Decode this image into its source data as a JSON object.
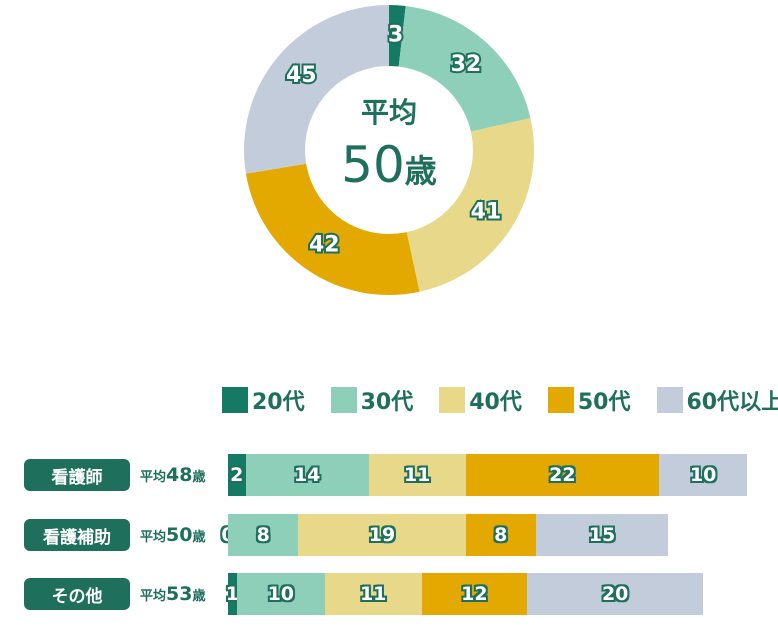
{
  "colors": {
    "20s": "#147a64",
    "30s": "#8ecfba",
    "40s": "#e8d889",
    "50s": "#e3a900",
    "60s": "#c3ccda",
    "text": "#1e6f5c"
  },
  "chart_data": [
    {
      "type": "pie",
      "center_title": "平均",
      "center_value": "50",
      "center_unit": "歳",
      "categories": [
        "20代",
        "30代",
        "40代",
        "50代",
        "60代以上"
      ],
      "values": [
        3,
        32,
        41,
        42,
        45
      ]
    },
    {
      "type": "bar",
      "orientation": "horizontal",
      "stacked": true,
      "legend": [
        "20代",
        "30代",
        "40代",
        "50代",
        "60代以上"
      ],
      "rows": [
        {
          "name": "看護師",
          "avg_prefix": "平均",
          "avg_value": "48",
          "avg_unit": "歳",
          "values": [
            2,
            14,
            11,
            22,
            10
          ]
        },
        {
          "name": "看護補助",
          "avg_prefix": "平均",
          "avg_value": "50",
          "avg_unit": "歳",
          "values": [
            0,
            8,
            19,
            8,
            15
          ]
        },
        {
          "name": "その他",
          "avg_prefix": "平均",
          "avg_value": "53",
          "avg_unit": "歳",
          "values": [
            1,
            10,
            11,
            12,
            20
          ]
        }
      ]
    }
  ]
}
